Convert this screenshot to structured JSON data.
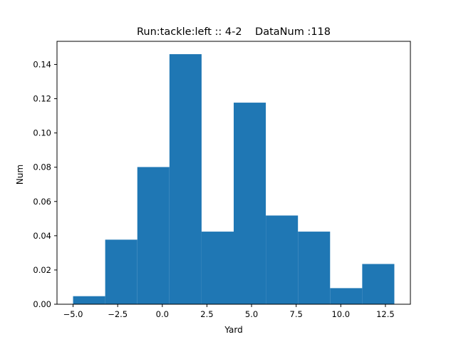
{
  "chart_data": {
    "type": "bar",
    "title": "Run:tackle:left :: 4-2    DataNum :118",
    "xlabel": "Yard",
    "ylabel": "Num",
    "xlim": [
      -5.9,
      13.9
    ],
    "ylim": [
      0,
      0.1535
    ],
    "bin_edges": [
      -5.0,
      -3.2,
      -1.4,
      0.4,
      2.2,
      4.0,
      5.8,
      7.6,
      9.4,
      11.2,
      13.0
    ],
    "values": [
      0.0047,
      0.0377,
      0.0801,
      0.146,
      0.0424,
      0.1177,
      0.0518,
      0.0424,
      0.0094,
      0.0235
    ],
    "xticks": [
      -5.0,
      -2.5,
      0.0,
      2.5,
      5.0,
      7.5,
      10.0,
      12.5
    ],
    "xtick_labels": [
      "−5.0",
      "−2.5",
      "0.0",
      "2.5",
      "5.0",
      "7.5",
      "10.0",
      "12.5"
    ],
    "yticks": [
      0.0,
      0.02,
      0.04,
      0.06,
      0.08,
      0.1,
      0.12,
      0.14
    ],
    "ytick_labels": [
      "0.00",
      "0.02",
      "0.04",
      "0.06",
      "0.08",
      "0.10",
      "0.12",
      "0.14"
    ],
    "bar_color": "#1f77b4",
    "grid": false,
    "legend": "none"
  }
}
